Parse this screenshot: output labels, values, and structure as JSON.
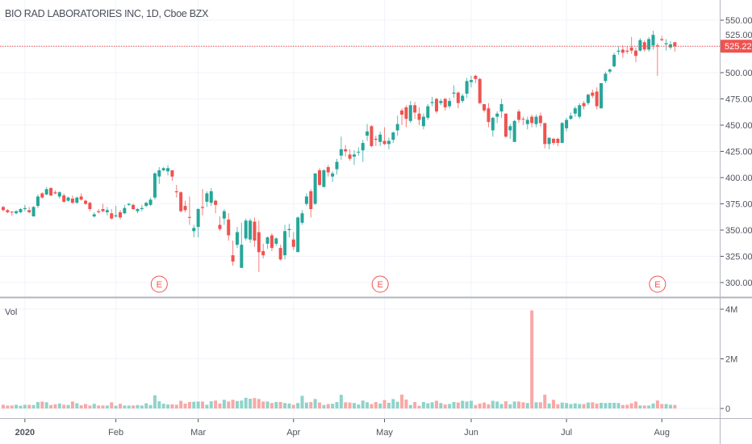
{
  "header": {
    "title": "BIO RAD LABORATORIES INC, 1D, Cboe BZX"
  },
  "colors": {
    "up": "#26a69a",
    "down": "#ef5350",
    "up_volume": "#8fd3ca",
    "down_volume": "#f7a9a7",
    "last_price": "#ef5350",
    "grid": "#f0f3fa",
    "earnings_marker": "#ef5350"
  },
  "chart_data": {
    "type": "candlestick",
    "title": "BIO RAD LABORATORIES INC, 1D, Cboe BZX",
    "price_axis": {
      "ylim": [
        290,
        560
      ],
      "ticks": [
        "300.00",
        "325.00",
        "350.00",
        "375.00",
        "400.00",
        "425.00",
        "450.00",
        "475.00",
        "500.00",
        "525.00",
        "550.00"
      ]
    },
    "last_price": "525.22",
    "volume_pane": {
      "label": "Vol",
      "ticks": [
        {
          "value": 0,
          "label": "0"
        },
        {
          "value": 2000000,
          "label": "2M"
        },
        {
          "value": 4000000,
          "label": "4M"
        }
      ]
    },
    "date_ticks": [
      {
        "date": "2020-01-02",
        "label": "2020"
      },
      {
        "date": "2020-02-03",
        "label": "Feb"
      },
      {
        "date": "2020-03-02",
        "label": "Mar"
      },
      {
        "date": "2020-04-01",
        "label": "Apr"
      },
      {
        "date": "2020-05-01",
        "label": "May"
      },
      {
        "date": "2020-06-01",
        "label": "Jun"
      },
      {
        "date": "2020-07-01",
        "label": "Jul"
      },
      {
        "date": "2020-08-03",
        "label": "Aug"
      }
    ],
    "earnings_markers": [
      {
        "date": "2020-02-18",
        "label": "E"
      },
      {
        "date": "2020-04-30",
        "label": "E"
      },
      {
        "date": "2020-07-31",
        "label": "E"
      }
    ],
    "columns": [
      "date",
      "open",
      "high",
      "low",
      "close",
      "volume_thousands"
    ],
    "candles": [
      [
        "2019-12-24",
        372,
        373,
        368,
        369,
        150
      ],
      [
        "2019-12-26",
        369,
        370,
        366,
        367,
        120
      ],
      [
        "2019-12-27",
        367.5,
        368,
        364,
        367,
        120
      ],
      [
        "2019-12-30",
        366,
        369,
        365,
        368,
        150
      ],
      [
        "2019-12-31",
        367,
        371,
        366,
        370,
        110
      ],
      [
        "2020-01-02",
        370,
        374,
        368,
        371,
        150
      ],
      [
        "2020-01-03",
        369,
        372,
        366,
        367,
        150
      ],
      [
        "2020-01-06",
        363,
        373,
        363,
        372,
        140
      ],
      [
        "2020-01-07",
        373,
        384,
        371,
        382,
        260
      ],
      [
        "2020-01-08",
        385,
        386,
        380,
        381,
        280
      ],
      [
        "2020-01-09",
        384,
        391,
        383,
        389,
        250
      ],
      [
        "2020-01-10",
        390,
        391,
        382,
        383,
        140
      ],
      [
        "2020-01-13",
        386,
        388,
        384,
        385,
        170
      ],
      [
        "2020-01-14",
        382,
        387,
        380,
        386,
        200
      ],
      [
        "2020-01-15",
        383,
        385,
        376,
        377,
        150
      ],
      [
        "2020-01-16",
        378,
        382,
        377,
        381,
        140
      ],
      [
        "2020-01-17",
        380,
        383,
        375,
        376,
        280
      ],
      [
        "2020-01-21",
        376,
        382,
        375,
        381,
        210
      ],
      [
        "2020-01-22",
        382,
        385,
        378,
        379,
        130
      ],
      [
        "2020-01-23",
        378,
        379,
        374,
        375,
        180
      ],
      [
        "2020-01-24",
        376,
        377,
        368,
        370,
        120
      ],
      [
        "2020-01-27",
        363,
        367,
        362,
        365,
        190
      ],
      [
        "2020-01-28",
        368,
        370,
        366,
        367,
        120
      ],
      [
        "2020-01-29",
        370,
        375,
        367,
        368,
        120
      ],
      [
        "2020-01-30",
        367,
        372,
        364,
        369,
        120
      ],
      [
        "2020-01-31",
        366,
        370,
        360,
        361,
        250
      ],
      [
        "2020-02-03",
        363,
        373,
        362,
        364,
        110
      ],
      [
        "2020-02-04",
        367,
        369,
        360,
        362,
        190
      ],
      [
        "2020-02-05",
        366,
        374,
        365,
        371,
        120
      ],
      [
        "2020-02-06",
        374,
        376,
        373,
        375,
        120
      ],
      [
        "2020-02-07",
        374,
        375,
        369,
        370,
        120
      ],
      [
        "2020-02-10",
        368,
        371,
        366,
        370,
        140
      ],
      [
        "2020-02-11",
        370,
        374,
        368,
        371,
        120
      ],
      [
        "2020-02-12",
        373,
        377,
        372,
        376,
        210
      ],
      [
        "2020-02-13",
        374,
        381,
        373,
        379,
        140
      ],
      [
        "2020-02-14",
        381,
        405,
        379,
        404,
        530
      ],
      [
        "2020-02-18",
        401,
        410,
        394,
        407,
        290
      ],
      [
        "2020-02-19",
        407,
        410,
        406,
        409,
        190
      ],
      [
        "2020-02-20",
        406,
        412,
        402,
        409,
        160
      ],
      [
        "2020-02-21",
        407,
        407,
        397,
        401,
        170
      ],
      [
        "2020-02-24",
        387,
        393,
        381,
        386,
        150
      ],
      [
        "2020-02-25",
        386,
        387,
        367,
        368,
        310
      ],
      [
        "2020-02-26",
        373,
        378,
        367,
        369,
        200
      ],
      [
        "2020-02-27",
        362.5,
        382,
        355,
        362,
        260
      ],
      [
        "2020-02-28",
        349,
        355,
        343,
        352,
        270
      ],
      [
        "2020-03-02",
        353,
        371,
        343,
        370,
        280
      ],
      [
        "2020-03-03",
        372,
        389,
        364,
        371,
        280
      ],
      [
        "2020-03-04",
        377,
        387,
        372,
        385,
        150
      ],
      [
        "2020-03-05",
        376,
        390,
        373,
        387,
        290
      ],
      [
        "2020-03-06",
        378,
        379,
        366,
        374,
        320
      ],
      [
        "2020-03-09",
        355,
        363,
        349,
        351,
        200
      ],
      [
        "2020-03-10",
        361,
        370,
        355,
        368,
        350
      ],
      [
        "2020-03-11",
        360,
        366,
        340,
        345,
        280
      ],
      [
        "2020-03-12",
        326,
        340,
        316,
        320,
        350
      ],
      [
        "2020-03-13",
        336,
        353,
        333,
        348,
        300
      ],
      [
        "2020-03-16",
        314,
        357,
        314,
        336,
        320
      ],
      [
        "2020-03-17",
        342,
        361,
        340,
        359,
        430
      ],
      [
        "2020-03-18",
        341,
        361,
        338,
        359,
        390
      ],
      [
        "2020-03-19",
        358,
        362,
        334,
        340,
        420
      ],
      [
        "2020-03-20",
        348,
        359,
        310,
        329,
        380
      ],
      [
        "2020-03-23",
        330,
        337,
        323,
        326,
        280
      ],
      [
        "2020-03-24",
        337,
        344,
        332,
        343,
        280
      ],
      [
        "2020-03-25",
        345,
        347,
        330,
        333,
        220
      ],
      [
        "2020-03-26",
        337,
        343,
        335,
        342,
        260
      ],
      [
        "2020-03-27",
        333,
        336,
        321,
        322,
        260
      ],
      [
        "2020-03-30",
        326,
        355,
        322,
        349,
        220
      ],
      [
        "2020-03-31",
        350,
        356,
        343,
        351,
        200
      ],
      [
        "2020-04-01",
        341,
        348,
        331,
        334,
        150
      ],
      [
        "2020-04-02",
        329,
        363,
        329,
        362,
        220
      ],
      [
        "2020-04-03",
        357,
        369,
        355,
        366,
        510
      ],
      [
        "2020-04-06",
        375,
        385,
        373,
        382,
        240
      ],
      [
        "2020-04-07",
        387,
        389,
        362,
        370,
        260
      ],
      [
        "2020-04-08",
        375,
        404,
        374,
        404,
        380
      ],
      [
        "2020-04-09",
        407,
        409,
        392,
        393,
        240
      ],
      [
        "2020-04-13",
        391,
        408,
        391,
        407,
        140
      ],
      [
        "2020-04-14",
        410,
        412,
        401,
        405,
        180
      ],
      [
        "2020-04-15",
        401,
        406,
        396,
        404,
        190
      ],
      [
        "2020-04-16",
        408,
        418,
        403,
        415,
        260
      ],
      [
        "2020-04-17",
        421,
        439,
        417,
        427,
        550
      ],
      [
        "2020-04-20",
        427,
        431,
        420,
        425,
        250
      ],
      [
        "2020-04-21",
        422,
        427,
        416,
        418,
        240
      ],
      [
        "2020-04-22",
        420,
        426,
        412,
        422,
        220
      ],
      [
        "2020-04-23",
        424,
        429,
        421,
        424.5,
        160
      ],
      [
        "2020-04-24",
        426,
        436,
        415,
        433,
        320
      ],
      [
        "2020-04-27",
        440,
        451,
        435,
        444,
        250
      ],
      [
        "2020-04-28",
        449,
        450,
        429,
        430,
        180
      ],
      [
        "2020-04-29",
        437,
        440,
        430,
        436,
        260
      ],
      [
        "2020-04-30",
        434,
        444,
        430,
        441,
        200
      ],
      [
        "2020-05-01",
        435,
        448,
        431,
        432,
        340
      ],
      [
        "2020-05-04",
        432,
        438,
        427,
        435,
        230
      ],
      [
        "2020-05-05",
        436,
        444,
        433,
        443,
        380
      ],
      [
        "2020-05-06",
        445,
        459,
        440,
        451,
        270
      ],
      [
        "2020-05-07",
        464,
        466,
        450,
        460,
        560
      ],
      [
        "2020-05-08",
        467,
        469,
        448,
        456,
        360
      ],
      [
        "2020-05-11",
        454,
        473,
        452,
        469,
        140
      ],
      [
        "2020-05-12",
        469,
        472,
        456,
        462,
        260
      ],
      [
        "2020-05-13",
        461,
        467,
        450,
        455,
        110
      ],
      [
        "2020-05-14",
        449,
        461,
        446,
        458,
        260
      ],
      [
        "2020-05-15",
        457,
        470,
        455,
        468,
        210
      ],
      [
        "2020-05-18",
        471,
        477,
        468,
        472,
        250
      ],
      [
        "2020-05-19",
        475,
        476,
        461,
        463,
        310
      ],
      [
        "2020-05-20",
        471,
        475,
        469,
        473,
        220
      ],
      [
        "2020-05-21",
        475,
        476,
        464,
        467,
        160
      ],
      [
        "2020-05-22",
        468,
        476,
        466,
        473,
        180
      ],
      [
        "2020-05-26",
        480,
        488,
        476,
        481,
        260
      ],
      [
        "2020-05-27",
        481,
        482,
        466,
        471,
        240
      ],
      [
        "2020-05-28",
        473,
        480,
        471,
        478,
        310
      ],
      [
        "2020-05-29",
        480,
        495,
        476,
        492,
        280
      ],
      [
        "2020-06-01",
        491,
        497,
        486,
        493,
        310
      ],
      [
        "2020-06-02",
        497,
        498,
        490,
        494,
        140
      ],
      [
        "2020-06-03",
        494,
        495,
        470,
        471,
        200
      ],
      [
        "2020-06-04",
        470,
        470,
        462,
        464,
        240
      ],
      [
        "2020-06-05",
        466,
        471,
        448,
        453,
        170
      ],
      [
        "2020-06-08",
        445,
        458,
        439,
        457,
        310
      ],
      [
        "2020-06-09",
        458,
        463,
        452,
        461,
        280
      ],
      [
        "2020-06-10",
        463,
        475,
        457,
        470,
        180
      ],
      [
        "2020-06-11",
        461,
        461,
        438,
        439,
        290
      ],
      [
        "2020-06-12",
        445,
        451,
        437,
        449,
        170
      ],
      [
        "2020-06-15",
        434,
        455,
        434,
        454,
        280
      ],
      [
        "2020-06-16",
        463,
        465,
        452,
        455,
        280
      ],
      [
        "2020-06-17",
        456,
        458,
        450,
        455.5,
        250
      ],
      [
        "2020-06-18",
        451,
        458,
        446,
        455,
        220
      ],
      [
        "2020-06-19",
        458,
        460,
        448,
        452,
        3950
      ],
      [
        "2020-06-22",
        451,
        460,
        448,
        458,
        250
      ],
      [
        "2020-06-23",
        459,
        462,
        449,
        452,
        250
      ],
      [
        "2020-06-24",
        452,
        452,
        428,
        432,
        560
      ],
      [
        "2020-06-25",
        432,
        438,
        427,
        438,
        200
      ],
      [
        "2020-06-26",
        437,
        438,
        431,
        433,
        350
      ],
      [
        "2020-06-29",
        437,
        438,
        430,
        433,
        170
      ],
      [
        "2020-06-30",
        433,
        453,
        433,
        452,
        240
      ],
      [
        "2020-07-01",
        447,
        457,
        444,
        455,
        220
      ],
      [
        "2020-07-02",
        456,
        462,
        455,
        459,
        180
      ],
      [
        "2020-07-06",
        461,
        468,
        458,
        466,
        210
      ],
      [
        "2020-07-07",
        458,
        471,
        456,
        469,
        180
      ],
      [
        "2020-07-08",
        471,
        473,
        465,
        468,
        180
      ],
      [
        "2020-07-09",
        471,
        480,
        469,
        479,
        240
      ],
      [
        "2020-07-10",
        481,
        484,
        476,
        478,
        250
      ],
      [
        "2020-07-13",
        482,
        486,
        465,
        468,
        200
      ],
      [
        "2020-07-14",
        466,
        490,
        466,
        490,
        230
      ],
      [
        "2020-07-15",
        492,
        501,
        490,
        499,
        220
      ],
      [
        "2020-07-16",
        501,
        504,
        499,
        503,
        230
      ],
      [
        "2020-07-17",
        506,
        519,
        505,
        517,
        230
      ],
      [
        "2020-07-20",
        520,
        525,
        517,
        521,
        220
      ],
      [
        "2020-07-21",
        522,
        526,
        514,
        519,
        140
      ],
      [
        "2020-07-22",
        521,
        525,
        518,
        520,
        150
      ],
      [
        "2020-07-23",
        524,
        534,
        518,
        521,
        210
      ],
      [
        "2020-07-24",
        521,
        524,
        510,
        516,
        280
      ],
      [
        "2020-07-27",
        521,
        533,
        520,
        531,
        120
      ],
      [
        "2020-07-28",
        529,
        531,
        520,
        522,
        120
      ],
      [
        "2020-07-29",
        522,
        534,
        520,
        532,
        120
      ],
      [
        "2020-07-30",
        526,
        540,
        522,
        536,
        200
      ],
      [
        "2020-07-31",
        526,
        528,
        497,
        525,
        320
      ],
      [
        "2020-08-03",
        532,
        535,
        530,
        531,
        180
      ],
      [
        "2020-08-04",
        527,
        532,
        521,
        528,
        180
      ],
      [
        "2020-08-05",
        524,
        530,
        522,
        527,
        150
      ],
      [
        "2020-08-06",
        529,
        529,
        520,
        525.22,
        140
      ]
    ]
  }
}
